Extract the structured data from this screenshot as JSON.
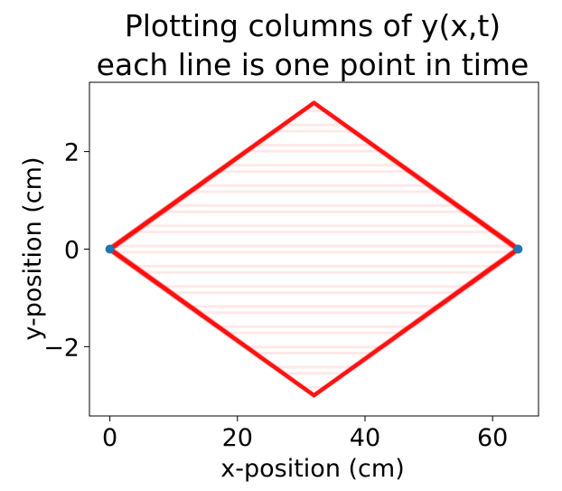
{
  "chart_data": {
    "type": "line",
    "title_lines": [
      "Plotting columns of y(x,t)",
      "each line is one point in time"
    ],
    "xlabel": "x-position (cm)",
    "ylabel": "y-position (cm)",
    "xlim": [
      -3.2,
      67.2
    ],
    "ylim": [
      -3.42,
      3.42
    ],
    "xticks": [
      0,
      20,
      40,
      60
    ],
    "xtick_labels": [
      "0",
      "20",
      "40",
      "60"
    ],
    "yticks": [
      -2,
      0,
      2
    ],
    "ytick_labels": [
      "−2",
      "0",
      "2"
    ],
    "grid": false,
    "legend": "none",
    "string_length": 64,
    "initial_peak": {
      "x": 32,
      "y": 3.0
    },
    "envelope": {
      "x": [
        0,
        32,
        64
      ],
      "upper": [
        0,
        3.0,
        0
      ],
      "lower": [
        0,
        -3.0,
        0
      ]
    },
    "snapshot_count": 30,
    "endpoints": {
      "x": [
        0,
        64
      ],
      "y": [
        0,
        0
      ]
    },
    "colors": {
      "lines": "#ff0000",
      "endpoints": "#1f77b4"
    }
  }
}
